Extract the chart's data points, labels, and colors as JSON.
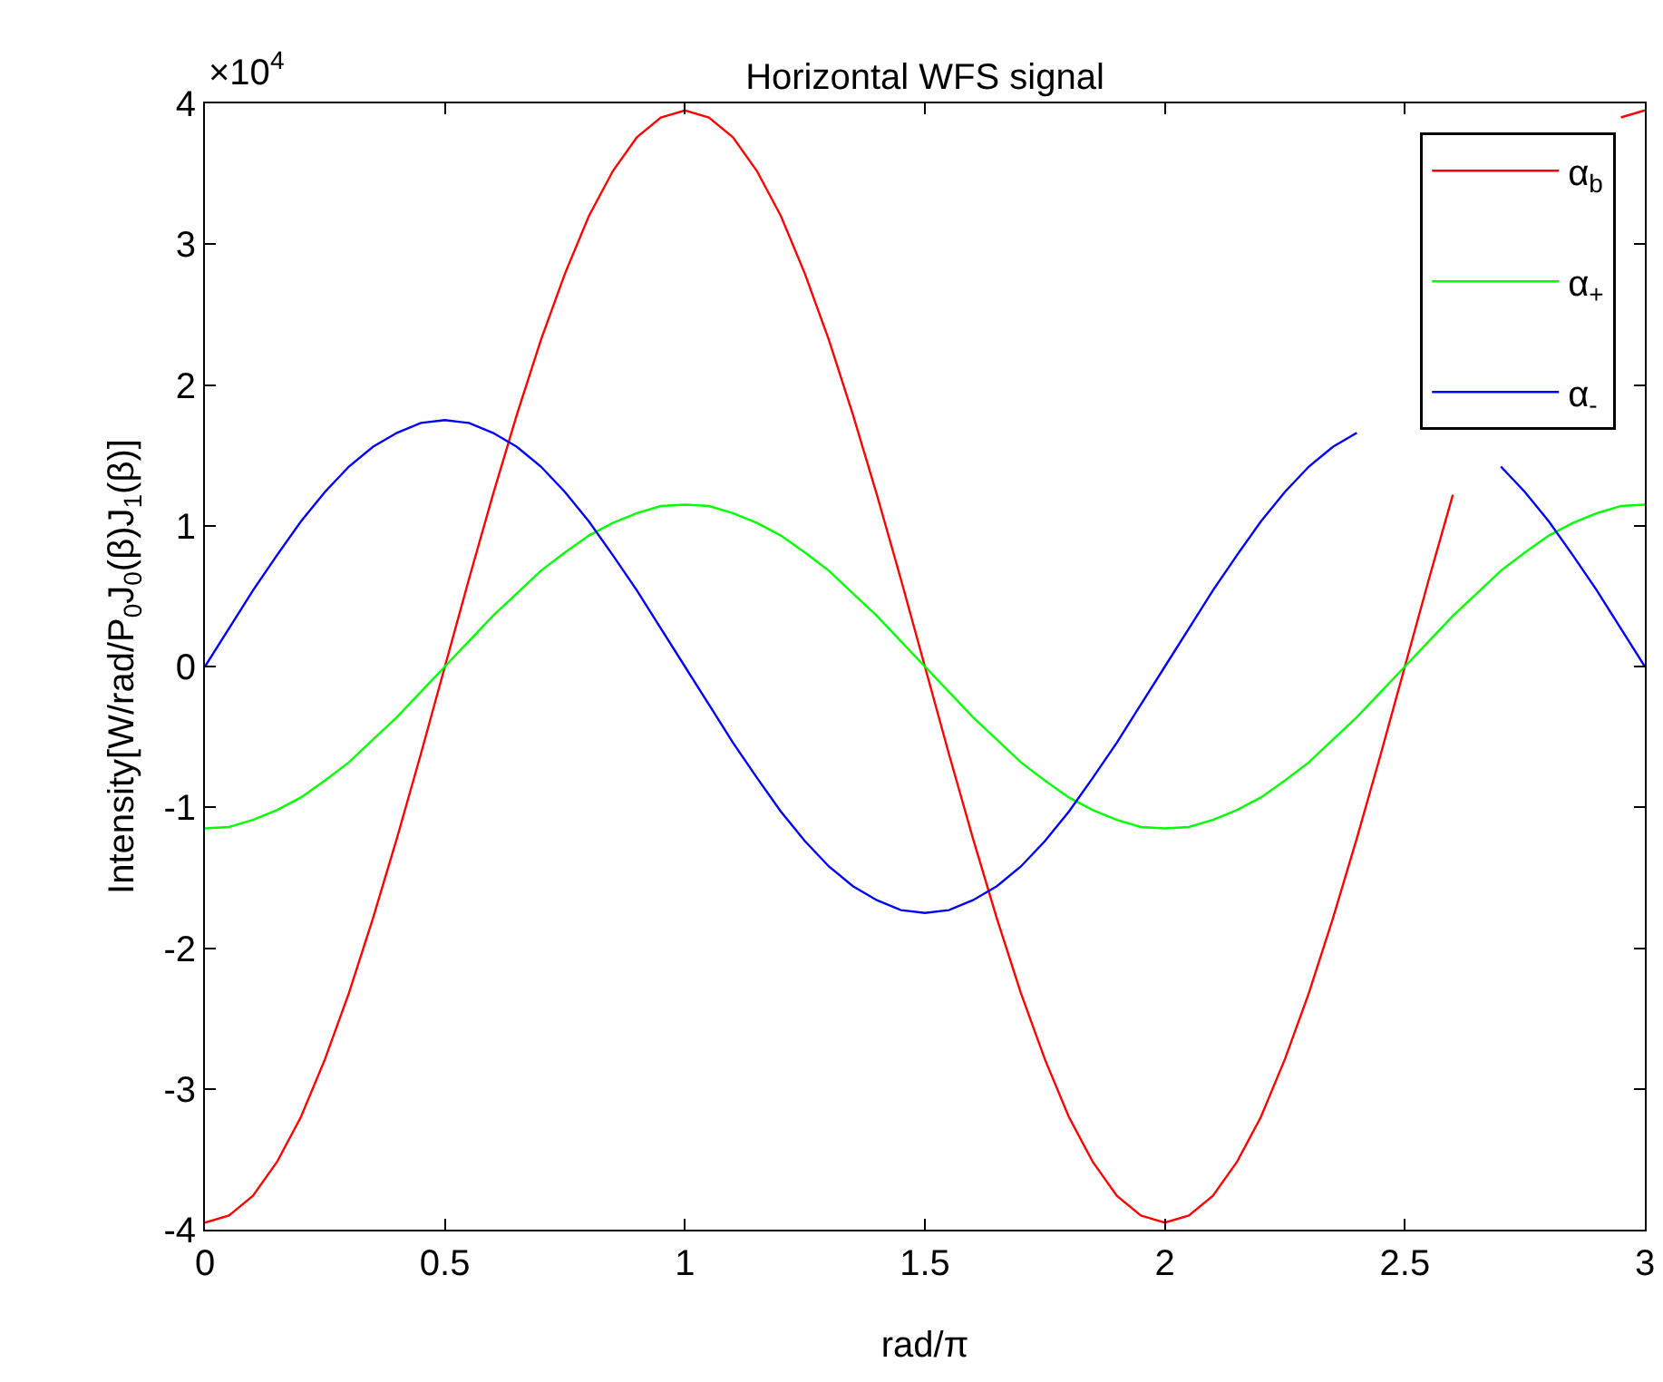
{
  "chart_data": {
    "type": "line",
    "title": "Horizontal WFS signal",
    "xlabel": "rad/π",
    "ylabel": "Intensity[W/rad/P$_{0}$J$_{0}$(β)J$_{1}$(β)]",
    "annotations": [
      "×10$^{4}$"
    ],
    "x": [
      0,
      0.05,
      0.1,
      0.15,
      0.2,
      0.25,
      0.3,
      0.35,
      0.4,
      0.45,
      0.5,
      0.55,
      0.6,
      0.65,
      0.7,
      0.75,
      0.8,
      0.85,
      0.9,
      0.95,
      1,
      1.05,
      1.1,
      1.15,
      1.2,
      1.25,
      1.3,
      1.35,
      1.4,
      1.45,
      1.5,
      1.55,
      1.6,
      1.65,
      1.7,
      1.75,
      1.8,
      1.85,
      1.9,
      1.95,
      2,
      2.05,
      2.1,
      2.15,
      2.2,
      2.25,
      2.3,
      2.35,
      2.4,
      2.45,
      2.5,
      2.55,
      2.6,
      2.65,
      2.7,
      2.75,
      2.8,
      2.85,
      2.9,
      2.95,
      3
    ],
    "series": [
      {
        "name": "α$_{b}$",
        "color": "#ff0000",
        "values": [
          -3.95,
          -3.9,
          -3.76,
          -3.52,
          -3.2,
          -2.79,
          -2.32,
          -1.79,
          -1.22,
          -0.62,
          0,
          0.62,
          1.22,
          1.79,
          2.32,
          2.79,
          3.2,
          3.52,
          3.76,
          3.9,
          3.95,
          3.9,
          3.76,
          3.52,
          3.2,
          2.79,
          2.32,
          1.79,
          1.22,
          0.62,
          0,
          -0.62,
          -1.22,
          -1.79,
          -2.32,
          -2.79,
          -3.2,
          -3.52,
          -3.76,
          -3.9,
          -3.95,
          -3.9,
          -3.76,
          -3.52,
          -3.2,
          -2.79,
          -2.32,
          -1.79,
          -1.22,
          -0.62,
          0,
          0.62,
          1.22,
          null,
          null,
          null,
          null,
          null,
          null,
          3.9,
          3.95
        ]
      },
      {
        "name": "α$_{+}$",
        "color": "#00ff00",
        "values": [
          -1.15,
          -1.14,
          -1.09,
          -1.02,
          -0.93,
          -0.81,
          -0.68,
          -0.52,
          -0.36,
          -0.18,
          0,
          0.18,
          0.36,
          0.52,
          0.68,
          0.81,
          0.93,
          1.02,
          1.09,
          1.14,
          1.15,
          1.14,
          1.09,
          1.02,
          0.93,
          0.81,
          0.68,
          0.52,
          0.36,
          0.18,
          0,
          -0.18,
          -0.36,
          -0.52,
          -0.68,
          -0.81,
          -0.93,
          -1.02,
          -1.09,
          -1.14,
          -1.15,
          -1.14,
          -1.09,
          -1.02,
          -0.93,
          -0.81,
          -0.68,
          -0.52,
          -0.36,
          -0.18,
          0,
          0.18,
          0.36,
          0.52,
          0.68,
          0.81,
          0.93,
          1.02,
          1.09,
          1.14,
          1.15
        ]
      },
      {
        "name": "α$_{-}$",
        "color": "#0000ff",
        "values": [
          0,
          0.27,
          0.54,
          0.79,
          1.03,
          1.24,
          1.42,
          1.56,
          1.66,
          1.73,
          1.75,
          1.73,
          1.66,
          1.56,
          1.42,
          1.24,
          1.03,
          0.79,
          0.54,
          0.27,
          0,
          -0.27,
          -0.54,
          -0.79,
          -1.03,
          -1.24,
          -1.42,
          -1.56,
          -1.66,
          -1.73,
          -1.75,
          -1.73,
          -1.66,
          -1.56,
          -1.42,
          -1.24,
          -1.03,
          -0.79,
          -0.54,
          -0.27,
          0,
          0.27,
          0.54,
          0.79,
          1.03,
          1.24,
          1.42,
          1.56,
          1.66,
          null,
          null,
          null,
          null,
          null,
          1.42,
          1.24,
          1.03,
          0.79,
          0.54,
          0.27,
          0
        ]
      }
    ],
    "xlim": [
      0,
      3
    ],
    "xticks": [
      0,
      0.5,
      1,
      1.5,
      2,
      2.5,
      3
    ],
    "ylim": [
      -4,
      4
    ],
    "yticks": [
      -4,
      -3,
      -2,
      -1,
      0,
      1,
      2,
      3,
      4
    ],
    "grid": false,
    "legend": "top right",
    "marker": "none",
    "line_style": "solid"
  }
}
